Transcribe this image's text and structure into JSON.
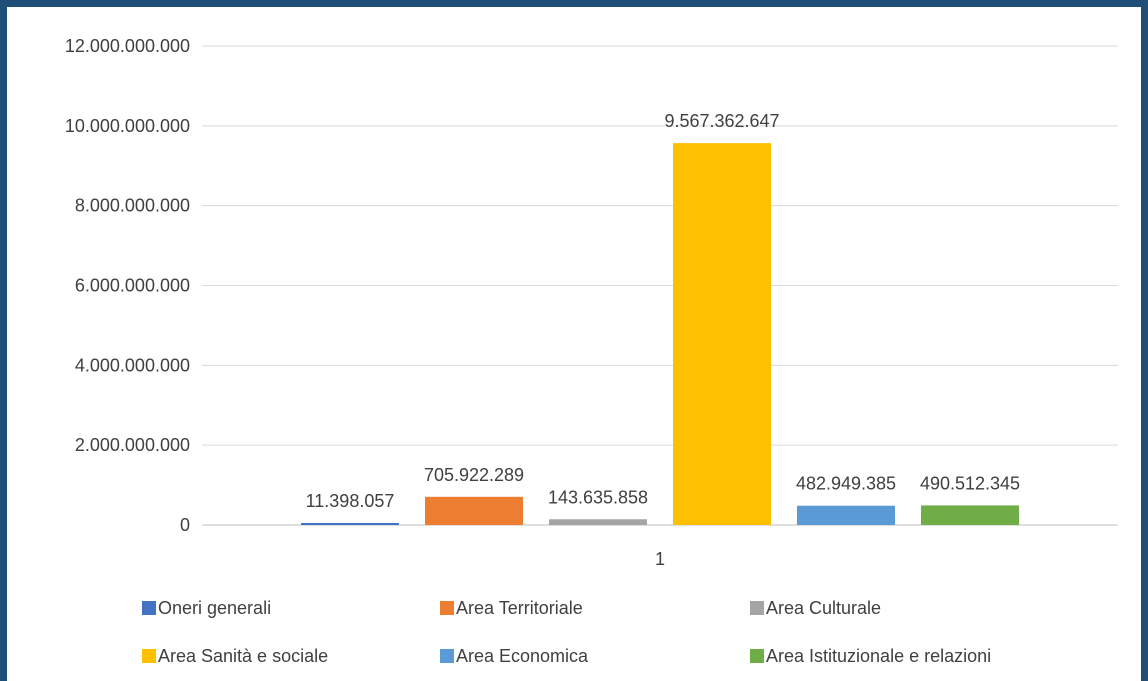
{
  "chart_data": {
    "type": "bar",
    "categories": [
      "1"
    ],
    "series": [
      {
        "name": "Oneri generali",
        "values": [
          11398057
        ],
        "color": "#4472c4",
        "label": "11.398.057"
      },
      {
        "name": "Area Territoriale",
        "values": [
          705922289
        ],
        "color": "#ed7d31",
        "label": "705.922.289"
      },
      {
        "name": "Area Culturale",
        "values": [
          143635858
        ],
        "color": "#a5a5a5",
        "label": "143.635.858"
      },
      {
        "name": "Area Sanità e sociale",
        "values": [
          9567362647
        ],
        "color": "#ffc000",
        "label": "9.567.362.647"
      },
      {
        "name": "Area Economica",
        "values": [
          482949385
        ],
        "color": "#5b9bd5",
        "label": "482.949.385"
      },
      {
        "name": "Area Istituzionale e relazioni",
        "values": [
          490512345
        ],
        "color": "#70ad47",
        "label": "490.512.345"
      }
    ],
    "ylim": [
      0,
      12000000000
    ],
    "yticks": [
      {
        "value": 0,
        "label": "0"
      },
      {
        "value": 2000000000,
        "label": "2.000.000.000"
      },
      {
        "value": 4000000000,
        "label": "4.000.000.000"
      },
      {
        "value": 6000000000,
        "label": "6.000.000.000"
      },
      {
        "value": 8000000000,
        "label": "8.000.000.000"
      },
      {
        "value": 10000000000,
        "label": "10.000.000.000"
      },
      {
        "value": 12000000000,
        "label": "12.000.000.000"
      }
    ],
    "grid": true,
    "legend_position": "bottom",
    "title": "",
    "xlabel": "",
    "ylabel": "",
    "border_color": "#1f4e79"
  }
}
